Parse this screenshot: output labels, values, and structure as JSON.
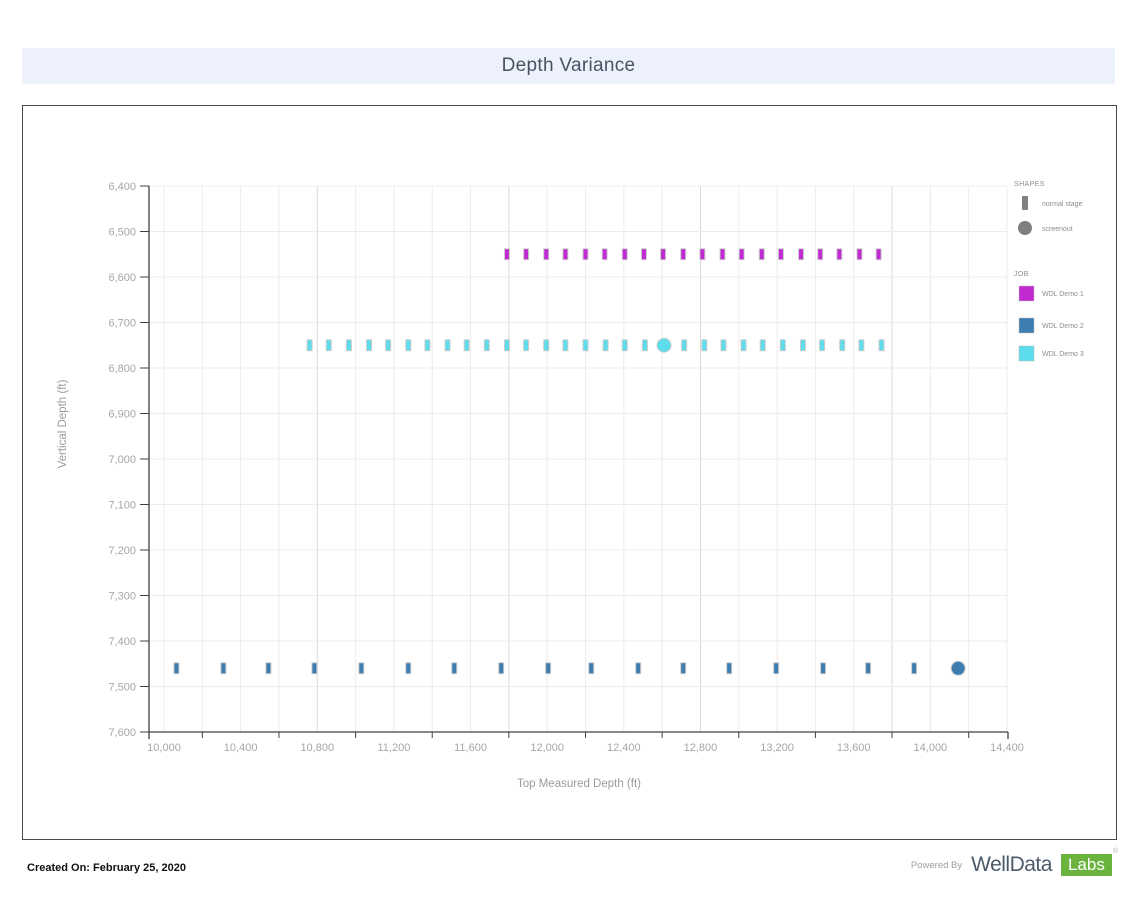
{
  "title": "Depth Variance",
  "chart_data": {
    "type": "scatter",
    "title": "Depth Variance",
    "xlabel": "Top Measured Depth (ft)",
    "ylabel": "Vertical Depth (ft)",
    "x_axis": {
      "min": 9920,
      "max": 14400,
      "grid_start": 10000,
      "grid_step": 200,
      "emphasized_gridlines": [
        10800,
        11800,
        12800,
        13800
      ],
      "minor_ticks": [
        10200,
        10600,
        11000,
        11400,
        11800,
        12200,
        12600,
        13000,
        13400,
        13800,
        14200
      ],
      "ticks": [
        {
          "value": 10000,
          "label": "10,000"
        },
        {
          "value": 10400,
          "label": "10,400"
        },
        {
          "value": 10800,
          "label": "10,800"
        },
        {
          "value": 11200,
          "label": "11,200"
        },
        {
          "value": 11600,
          "label": "11,600"
        },
        {
          "value": 12000,
          "label": "12,000"
        },
        {
          "value": 12400,
          "label": "12,400"
        },
        {
          "value": 12800,
          "label": "12,800"
        },
        {
          "value": 13200,
          "label": "13,200"
        },
        {
          "value": 13600,
          "label": "13,600"
        },
        {
          "value": 14000,
          "label": "14,000"
        },
        {
          "value": 14400,
          "label": "14,400"
        }
      ]
    },
    "y_axis": {
      "min": 6400,
      "max": 7600,
      "step": 100,
      "inverted": true,
      "ticks": [
        {
          "value": 6400,
          "label": "6,400"
        },
        {
          "value": 6500,
          "label": "6,500"
        },
        {
          "value": 6600,
          "label": "6,600"
        },
        {
          "value": 6700,
          "label": "6,700"
        },
        {
          "value": 6800,
          "label": "6,800"
        },
        {
          "value": 6900,
          "label": "6,900"
        },
        {
          "value": 7000,
          "label": "7,000"
        },
        {
          "value": 7100,
          "label": "7,100"
        },
        {
          "value": 7200,
          "label": "7,200"
        },
        {
          "value": 7300,
          "label": "7,300"
        },
        {
          "value": 7400,
          "label": "7,400"
        },
        {
          "value": 7500,
          "label": "7,500"
        },
        {
          "value": 7600,
          "label": "7,600"
        }
      ]
    },
    "series": [
      {
        "name": "WDL Demo 1",
        "color": "#bf2bd1",
        "vertical_depth": 6550,
        "stages": [
          11790,
          11890,
          11995,
          12095,
          12200,
          12300,
          12405,
          12505,
          12605,
          12710,
          12810,
          12915,
          13015,
          13120,
          13220,
          13325,
          13425,
          13525,
          13630,
          13730
        ],
        "screenouts": []
      },
      {
        "name": "WDL Demo 2",
        "color": "#3e7db0",
        "vertical_depth": 7460,
        "stages": [
          10065,
          10310,
          10545,
          10785,
          11030,
          11275,
          11515,
          11760,
          12005,
          12230,
          12475,
          12710,
          12950,
          13195,
          13440,
          13675,
          13915,
          14145
        ],
        "screenouts": [
          14145
        ]
      },
      {
        "name": "WDL Demo 3",
        "color": "#5ddcec",
        "vertical_depth": 6750,
        "stages": [
          10760,
          10860,
          10965,
          11070,
          11170,
          11275,
          11375,
          11480,
          11580,
          11685,
          11790,
          11890,
          11995,
          12095,
          12200,
          12305,
          12405,
          12510,
          12610,
          12715,
          12820,
          12920,
          13025,
          13125,
          13230,
          13335,
          13435,
          13540,
          13640,
          13745
        ],
        "screenouts": [
          12610
        ]
      }
    ],
    "marker": {
      "normal_w": 5,
      "normal_h": 11,
      "screenout_r": 7,
      "stroke": "#cccccc"
    }
  },
  "legend": {
    "shapes_title": "SHAPES",
    "shape_color": "#7f7f7f",
    "shape_items": [
      {
        "label": "normal stage",
        "shape": "rect"
      },
      {
        "label": "screenout",
        "shape": "circle"
      }
    ],
    "job_title": "JOB",
    "job_items": [
      {
        "label": "WDL Demo 1",
        "color": "#bf2bd1"
      },
      {
        "label": "WDL Demo 2",
        "color": "#3e7db0"
      },
      {
        "label": "WDL Demo 3",
        "color": "#5ddcec"
      }
    ]
  },
  "footer": {
    "created_on": "Created On: February 25, 2020",
    "powered_by": "Powered By",
    "brand_name": "WellData",
    "brand_labs": "Labs",
    "registered_mark": "®"
  },
  "colors": {
    "title_bar_bg": "#edf1fb",
    "title_text": "#4a5263",
    "box_border": "#4a4a4a",
    "grid": "#ececec",
    "grid_emphasis": "#d9d9d9",
    "axis": "#404040",
    "tick_label": "#a6a6a6",
    "brand_green": "#69b33e",
    "brand_slate": "#4c5b6b"
  }
}
